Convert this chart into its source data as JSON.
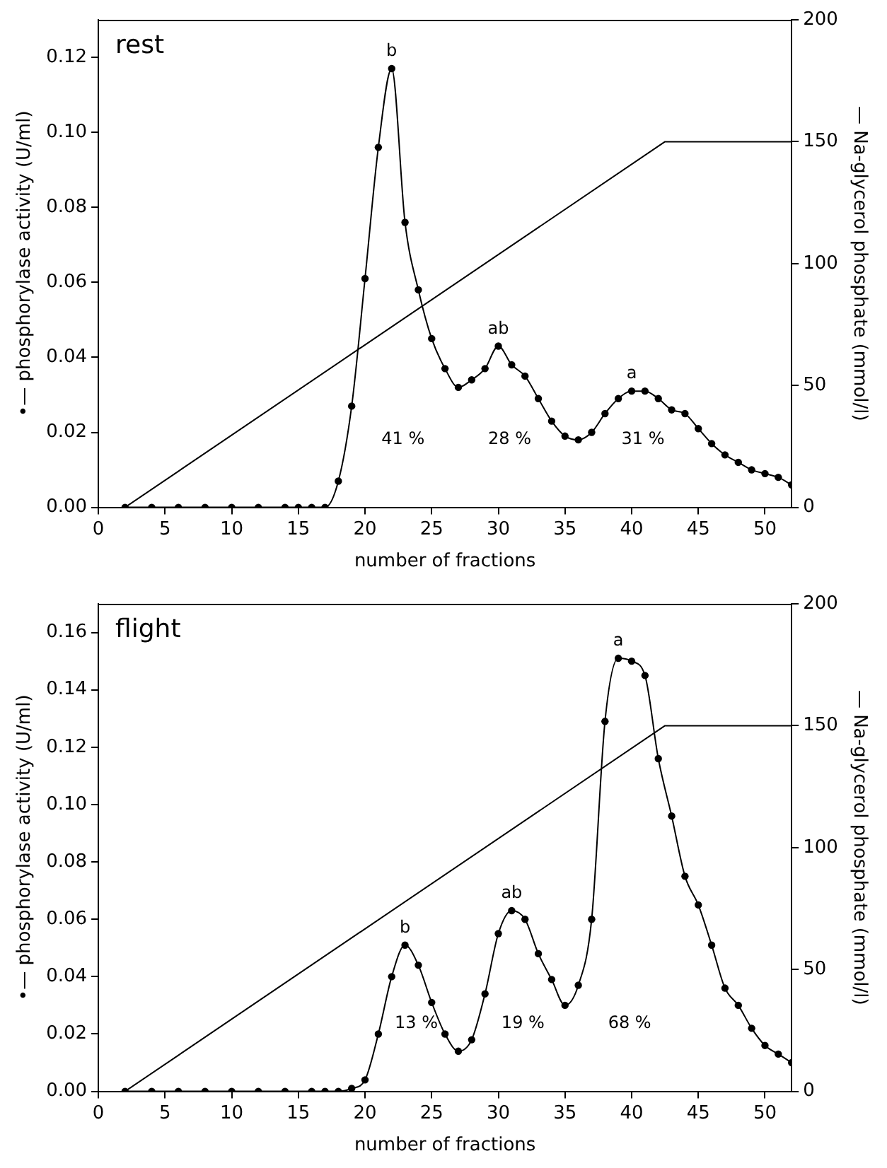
{
  "chart_data": [
    {
      "type": "line",
      "title": "rest",
      "xlabel": "number of fractions",
      "ylabel": "•— phosphorylase activity (U/ml)",
      "y2label": "— Na-glycerol phosphate (mmol/l)",
      "xlim": [
        0,
        52
      ],
      "xticks": [
        0,
        5,
        10,
        15,
        20,
        25,
        30,
        35,
        40,
        45,
        50
      ],
      "ylim": [
        0,
        0.13
      ],
      "yticks": [
        {
          "value": 0,
          "label": "0.00"
        },
        {
          "value": 0.02,
          "label": "0.02"
        },
        {
          "value": 0.04,
          "label": "0.04"
        },
        {
          "value": 0.06,
          "label": "0.06"
        },
        {
          "value": 0.08,
          "label": "0.08"
        },
        {
          "value": 0.1,
          "label": "0.10"
        },
        {
          "value": 0.12,
          "label": "0.12"
        }
      ],
      "y2lim": [
        0,
        200
      ],
      "y2ticks": [
        0,
        50,
        100,
        150,
        200
      ],
      "grid": false,
      "legend": false,
      "series": [
        {
          "color": "#000000",
          "marker": "circle",
          "x": [
            2,
            4,
            6,
            8,
            10,
            12,
            14,
            15,
            16,
            17,
            18,
            19,
            20,
            21,
            22,
            23,
            24,
            25,
            26,
            27,
            28,
            29,
            30,
            31,
            32,
            33,
            34,
            35,
            36,
            37,
            38,
            39,
            40,
            41,
            42,
            43,
            44,
            45,
            46,
            47,
            48,
            49,
            50,
            51,
            52
          ],
          "values": [
            0,
            0,
            0,
            0,
            0,
            0,
            0,
            0,
            0,
            0,
            0.007,
            0.027,
            0.061,
            0.096,
            0.117,
            0.076,
            0.058,
            0.045,
            0.037,
            0.032,
            0.034,
            0.037,
            0.043,
            0.038,
            0.035,
            0.029,
            0.023,
            0.019,
            0.018,
            0.02,
            0.025,
            0.029,
            0.031,
            0.031,
            0.029,
            0.026,
            0.025,
            0.021,
            0.017,
            0.014,
            0.012,
            0.01,
            0.009,
            0.008,
            0.006
          ]
        },
        {
          "color": "#000000",
          "marker": "none",
          "axis": "y2",
          "x": [
            2,
            42.5,
            52
          ],
          "values": [
            0,
            150,
            150
          ]
        }
      ],
      "annotations": [
        {
          "text": "b",
          "x": 22,
          "y": 0.117
        },
        {
          "text": "ab",
          "x": 30,
          "y": 0.043
        },
        {
          "text": "a",
          "x": 40,
          "y": 0.031
        },
        "41 %",
        "28 %",
        "31 %"
      ]
    },
    {
      "type": "line",
      "title": "flight",
      "xlabel": "number of fractions",
      "ylabel": "•— phosphorylase activity (U/ml)",
      "y2label": "— Na-glycerol phosphate (mmol/l)",
      "xlim": [
        0,
        52
      ],
      "xticks": [
        0,
        5,
        10,
        15,
        20,
        25,
        30,
        35,
        40,
        45,
        50
      ],
      "ylim": [
        0,
        0.17
      ],
      "yticks": [
        {
          "value": 0,
          "label": "0.00"
        },
        {
          "value": 0.02,
          "label": "0.02"
        },
        {
          "value": 0.04,
          "label": "0.04"
        },
        {
          "value": 0.06,
          "label": "0.06"
        },
        {
          "value": 0.08,
          "label": "0.08"
        },
        {
          "value": 0.1,
          "label": "0.10"
        },
        {
          "value": 0.12,
          "label": "0.12"
        },
        {
          "value": 0.14,
          "label": "0.14"
        },
        {
          "value": 0.16,
          "label": "0.16"
        }
      ],
      "y2lim": [
        0,
        200
      ],
      "y2ticks": [
        0,
        50,
        100,
        150,
        200
      ],
      "grid": false,
      "legend": false,
      "series": [
        {
          "color": "#000000",
          "marker": "circle",
          "x": [
            2,
            4,
            6,
            8,
            10,
            12,
            14,
            16,
            17,
            18,
            19,
            20,
            21,
            22,
            23,
            24,
            25,
            26,
            27,
            28,
            29,
            30,
            31,
            32,
            33,
            34,
            35,
            36,
            37,
            38,
            39,
            40,
            41,
            42,
            43,
            44,
            45,
            46,
            47,
            48,
            49,
            50,
            51,
            52
          ],
          "values": [
            0,
            0,
            0,
            0,
            0,
            0,
            0,
            0,
            0,
            0,
            0.001,
            0.004,
            0.02,
            0.04,
            0.051,
            0.044,
            0.031,
            0.02,
            0.014,
            0.018,
            0.034,
            0.055,
            0.063,
            0.06,
            0.048,
            0.039,
            0.03,
            0.037,
            0.06,
            0.129,
            0.151,
            0.15,
            0.145,
            0.116,
            0.096,
            0.075,
            0.065,
            0.051,
            0.036,
            0.03,
            0.022,
            0.016,
            0.013,
            0.01
          ]
        },
        {
          "color": "#000000",
          "marker": "none",
          "axis": "y2",
          "x": [
            2,
            42.5,
            52
          ],
          "values": [
            0,
            150,
            150
          ]
        }
      ],
      "annotations": [
        {
          "text": "b",
          "x": 23,
          "y": 0.051
        },
        {
          "text": "ab",
          "x": 31,
          "y": 0.063
        },
        {
          "text": "a",
          "x": 39,
          "y": 0.151
        },
        "13 %",
        "19 %",
        "68 %"
      ]
    }
  ]
}
